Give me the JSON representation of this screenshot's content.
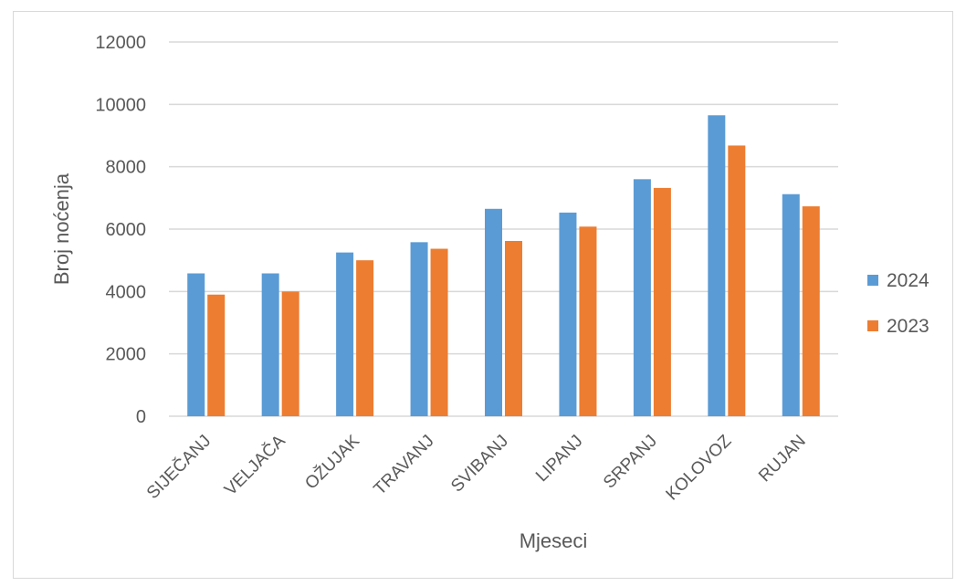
{
  "chart_data": {
    "type": "bar",
    "title": "",
    "xlabel": "Mjeseci",
    "ylabel": "Broj noćenja",
    "categories": [
      "SIJEČANJ",
      "VELJAČA",
      "OŽUJAK",
      "TRAVANJ",
      "SVIBANJ",
      "LIPANJ",
      "SRPANJ",
      "KOLOVOZ",
      "RUJAN"
    ],
    "series": [
      {
        "name": "2024",
        "color": "#5b9bd5",
        "values": [
          4580,
          4580,
          5250,
          5580,
          6650,
          6530,
          7600,
          9650,
          7120
        ]
      },
      {
        "name": "2023",
        "color": "#ed7d31",
        "values": [
          3900,
          4000,
          5000,
          5370,
          5620,
          6080,
          7320,
          8680,
          6730
        ]
      }
    ],
    "ylim": [
      0,
      12000
    ],
    "yticks": [
      "0",
      "2000",
      "4000",
      "6000",
      "8000",
      "10000",
      "12000"
    ],
    "grid": true,
    "legend": "right"
  }
}
